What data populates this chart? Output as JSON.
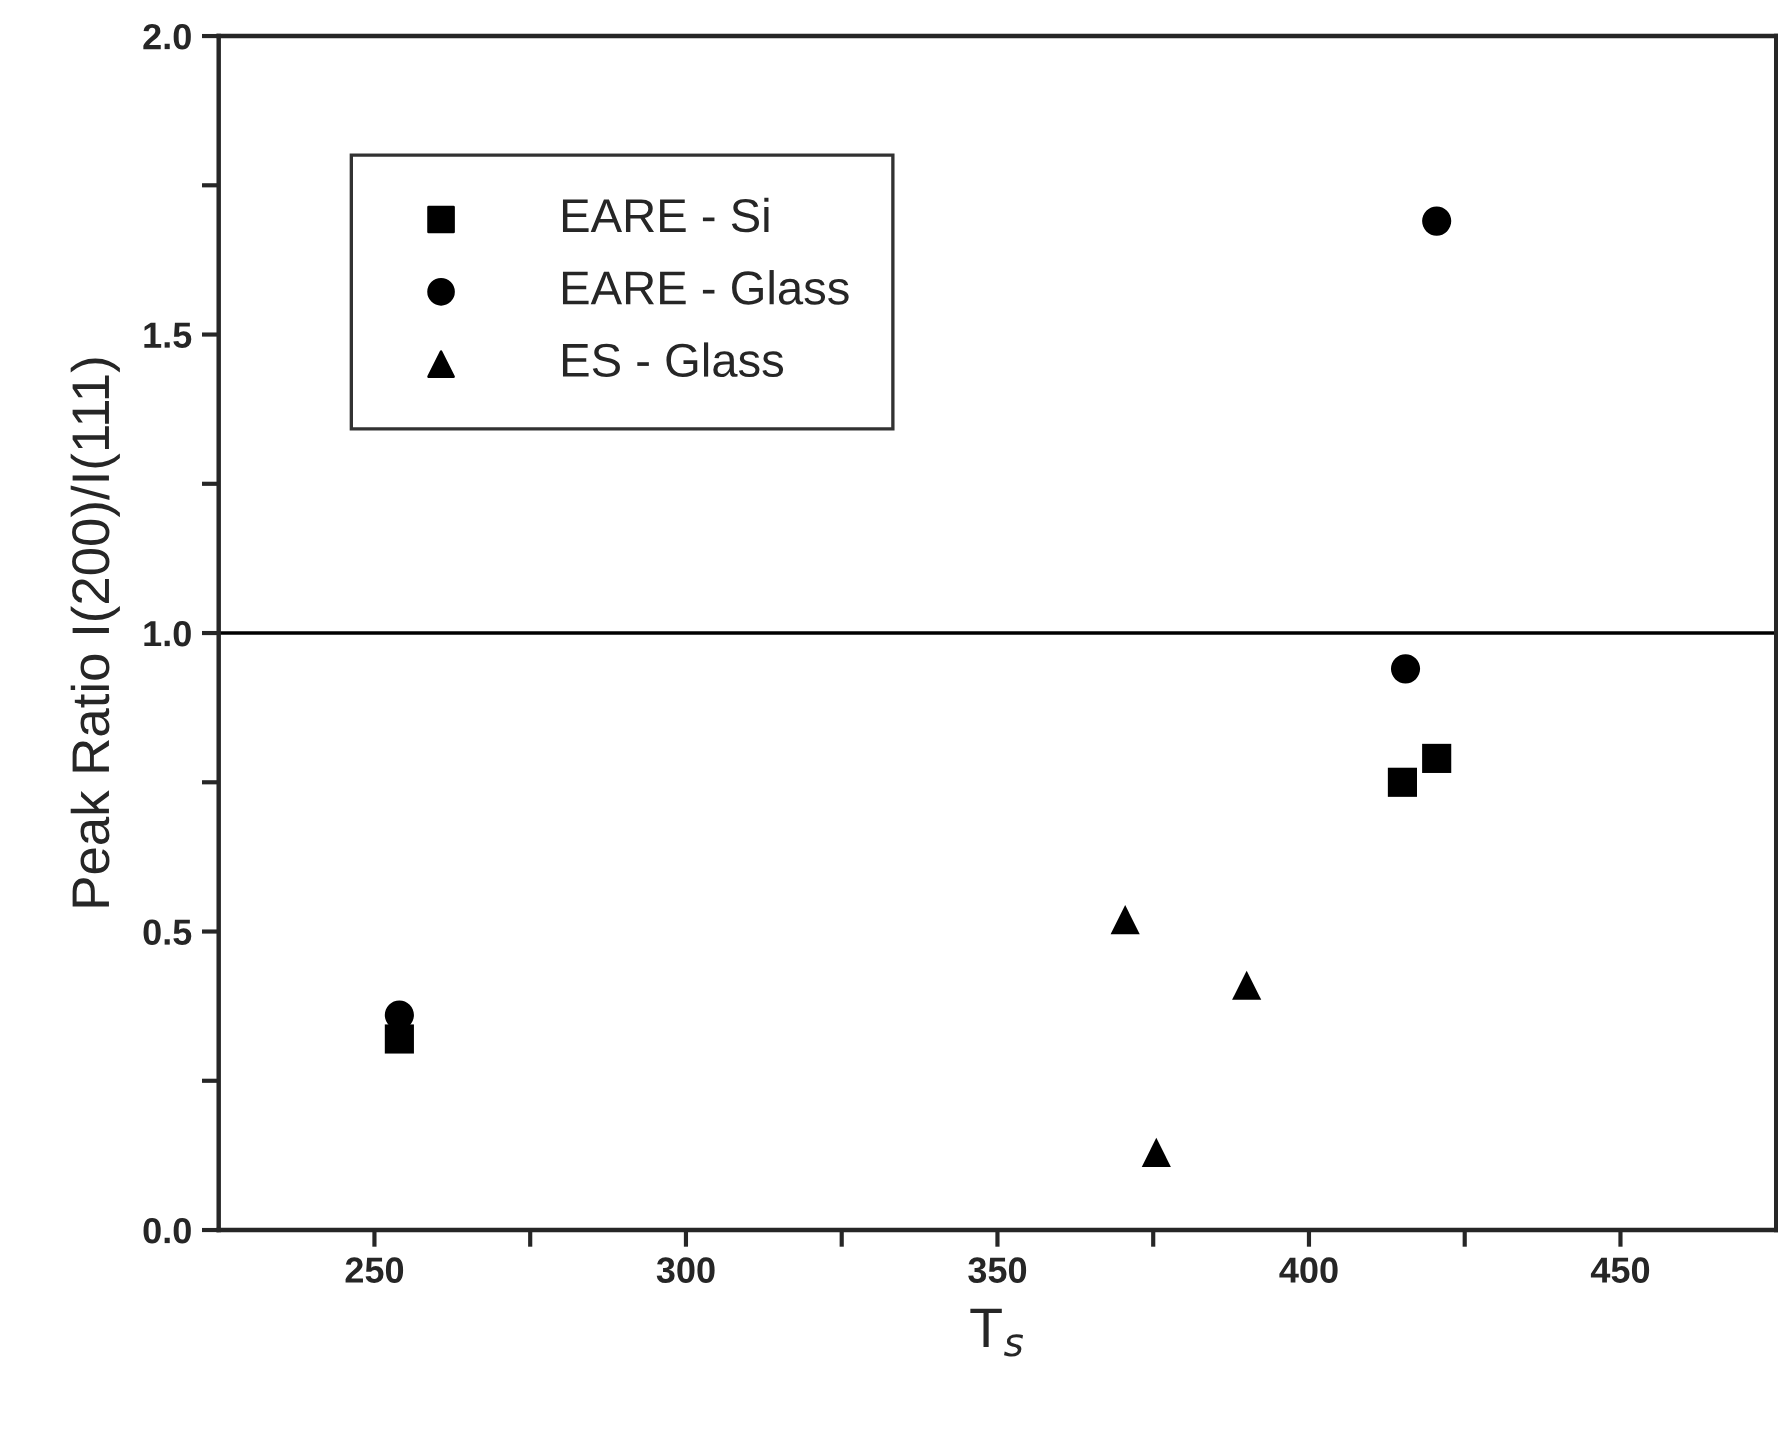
{
  "chart_data": {
    "type": "scatter",
    "xlabel": "T$_{s}$",
    "ylabel": "Peak Ratio I(200)/I(111)",
    "xlim": [
      225,
      475
    ],
    "ylim": [
      0,
      2
    ],
    "xticks": [
      250,
      {
        "value": 275,
        "label": null
      },
      300,
      {
        "value": 325,
        "label": null
      },
      350,
      {
        "value": 375,
        "label": null
      },
      400,
      {
        "value": 425,
        "label": null
      },
      450
    ],
    "yticks": [
      "0.0",
      {
        "value": 0.25,
        "label": null
      },
      {
        "value": 0.5,
        "label": "0.5"
      },
      {
        "value": 0.75,
        "label": null
      },
      {
        "value": 1.0,
        "label": "1.0"
      },
      {
        "value": 1.25,
        "label": null
      },
      {
        "value": 1.5,
        "label": "1.5"
      },
      {
        "value": 1.75,
        "label": null
      },
      {
        "value": 2.0,
        "label": "2.0"
      }
    ],
    "series": [
      {
        "name": "EARE - Si",
        "color": "#000000",
        "marker": "square",
        "x": [
          254,
          415,
          420.5
        ],
        "values": [
          0.32,
          0.75,
          0.79
        ]
      },
      {
        "name": "EARE - Glass",
        "color": "#000000",
        "marker": "circle",
        "x": [
          254,
          415.5,
          420.5
        ],
        "values": [
          0.36,
          0.94,
          1.69
        ]
      },
      {
        "name": "ES - Glass",
        "color": "#000000",
        "marker": "triangle",
        "x": [
          370.5,
          375.5,
          390
        ],
        "values": [
          0.52,
          0.13,
          0.41
        ]
      }
    ],
    "ref_lines": [
      {
        "axis": "y",
        "value": 1.0,
        "color": "#000000",
        "line_style": "solid"
      }
    ],
    "legend": "top left",
    "grid": false
  }
}
